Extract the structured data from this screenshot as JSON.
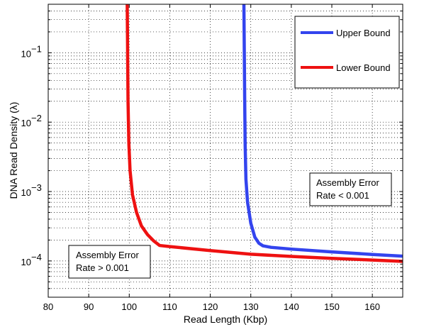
{
  "chart_data": {
    "type": "line",
    "xlabel": "Read Length (Kbp)",
    "ylabel": "DNA Read Density (λ)",
    "xlim": [
      80,
      167.5
    ],
    "ylim": [
      3e-05,
      0.5
    ],
    "yscale": "log",
    "grid": true,
    "legend_position": "top-right",
    "xticks": [
      80,
      90,
      100,
      110,
      120,
      130,
      140,
      150,
      160
    ],
    "yticks": [
      {
        "value": 0.1,
        "base": "10",
        "exp": "−1"
      },
      {
        "value": 0.01,
        "base": "10",
        "exp": "−2"
      },
      {
        "value": 0.001,
        "base": "10",
        "exp": "−3"
      },
      {
        "value": 0.0001,
        "base": "10",
        "exp": "−4"
      }
    ],
    "series": [
      {
        "name": "Upper Bound",
        "color": "#3344ee",
        "points": [
          [
            128.3,
            0.5
          ],
          [
            128.4,
            0.1
          ],
          [
            128.5,
            0.02
          ],
          [
            128.6,
            0.005
          ],
          [
            128.8,
            0.0015
          ],
          [
            129.2,
            0.0007
          ],
          [
            130,
            0.00035
          ],
          [
            131,
            0.00022
          ],
          [
            132,
            0.00018
          ],
          [
            133,
            0.000165
          ],
          [
            135,
            0.000157
          ],
          [
            140,
            0.000148
          ],
          [
            150,
            0.000135
          ],
          [
            160,
            0.000124
          ],
          [
            167.5,
            0.000117
          ]
        ]
      },
      {
        "name": "Lower Bound",
        "color": "#ee1111",
        "points": [
          [
            99.5,
            0.5
          ],
          [
            99.6,
            0.1
          ],
          [
            99.7,
            0.02
          ],
          [
            99.9,
            0.005
          ],
          [
            100.2,
            0.002
          ],
          [
            100.8,
            0.0009
          ],
          [
            101.8,
            0.0005
          ],
          [
            103,
            0.00032
          ],
          [
            104.5,
            0.00024
          ],
          [
            106,
            0.000195
          ],
          [
            107.5,
            0.000167
          ],
          [
            110,
            0.000161
          ],
          [
            120,
            0.000141
          ],
          [
            130,
            0.000125
          ],
          [
            140,
            0.000116
          ],
          [
            150,
            0.000109
          ],
          [
            160,
            0.000103
          ],
          [
            167.5,
            9.85e-05
          ]
        ]
      }
    ],
    "annotations": [
      {
        "lines": [
          "Assembly Error",
          "Rate < 0.001"
        ],
        "x": 143,
        "y": 0.00085
      },
      {
        "lines": [
          "Assembly Error",
          "Rate > 0.001"
        ],
        "x": 87,
        "y": 8.5e-05
      }
    ]
  }
}
